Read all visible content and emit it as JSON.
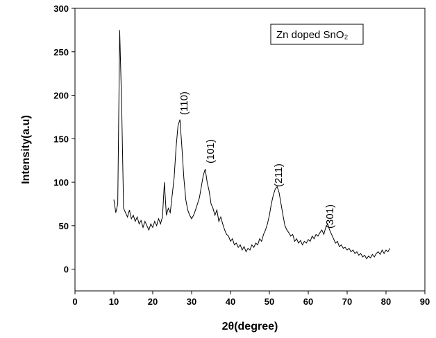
{
  "chart_data": {
    "type": "line",
    "xlabel": "2θ(degree)",
    "ylabel": "Intensity(a.u)",
    "legend_text": "Zn doped SnO₂",
    "annotations": [
      "(110)",
      "(101)",
      "(211)",
      "(301)"
    ],
    "color": "#000000",
    "xlim": [
      0,
      90
    ],
    "xticks": [
      0,
      10,
      20,
      30,
      40,
      50,
      60,
      70,
      80,
      90
    ],
    "ylim": [
      -25,
      300
    ],
    "yticks": [
      0,
      50,
      100,
      150,
      200,
      250,
      300
    ],
    "x": [
      10,
      10.5,
      11,
      11.5,
      12,
      12.5,
      13,
      13.5,
      14,
      14.5,
      15,
      15.5,
      16,
      16.5,
      17,
      17.5,
      18,
      18.5,
      19,
      19.5,
      20,
      20.5,
      21,
      21.5,
      22,
      22.5,
      23,
      23.5,
      24,
      24.5,
      25,
      25.5,
      26,
      26.5,
      27,
      27.5,
      28,
      28.5,
      29,
      29.5,
      30,
      30.5,
      31,
      31.5,
      32,
      32.5,
      33,
      33.5,
      34,
      34.5,
      35,
      35.5,
      36,
      36.5,
      37,
      37.5,
      38,
      38.5,
      39,
      39.5,
      40,
      40.5,
      41,
      41.5,
      42,
      42.5,
      43,
      43.5,
      44,
      44.5,
      45,
      45.5,
      46,
      46.5,
      47,
      47.5,
      48,
      48.5,
      49,
      49.5,
      50,
      50.5,
      51,
      51.5,
      52,
      52.5,
      53,
      53.5,
      54,
      54.5,
      55,
      55.5,
      56,
      56.5,
      57,
      57.5,
      58,
      58.5,
      59,
      59.5,
      60,
      60.5,
      61,
      61.5,
      62,
      62.5,
      63,
      63.5,
      64,
      64.5,
      65,
      65.5,
      66,
      66.5,
      67,
      67.5,
      68,
      68.5,
      69,
      69.5,
      70,
      70.5,
      71,
      71.5,
      72,
      72.5,
      73,
      73.5,
      74,
      74.5,
      75,
      75.5,
      76,
      76.5,
      77,
      77.5,
      78,
      78.5,
      79,
      79.5,
      80,
      80.5,
      81
    ],
    "values": [
      80,
      65,
      75,
      275,
      190,
      70,
      65,
      60,
      68,
      58,
      62,
      55,
      60,
      52,
      56,
      48,
      55,
      50,
      45,
      52,
      48,
      55,
      50,
      58,
      52,
      60,
      100,
      62,
      70,
      65,
      85,
      105,
      140,
      165,
      172,
      140,
      105,
      80,
      68,
      62,
      58,
      62,
      68,
      75,
      82,
      95,
      108,
      115,
      100,
      90,
      75,
      70,
      62,
      68,
      55,
      60,
      52,
      45,
      40,
      38,
      32,
      35,
      28,
      30,
      25,
      28,
      22,
      26,
      20,
      24,
      22,
      28,
      25,
      30,
      28,
      35,
      32,
      40,
      45,
      52,
      62,
      75,
      85,
      92,
      95,
      88,
      75,
      62,
      50,
      45,
      42,
      38,
      40,
      32,
      35,
      30,
      33,
      28,
      32,
      30,
      34,
      32,
      38,
      35,
      40,
      38,
      42,
      45,
      40,
      48,
      52,
      45,
      40,
      35,
      30,
      32,
      26,
      28,
      24,
      25,
      22,
      24,
      20,
      22,
      18,
      20,
      16,
      18,
      14,
      16,
      12,
      15,
      13,
      17,
      14,
      18,
      20,
      17,
      22,
      18,
      22,
      20,
      24
    ]
  }
}
